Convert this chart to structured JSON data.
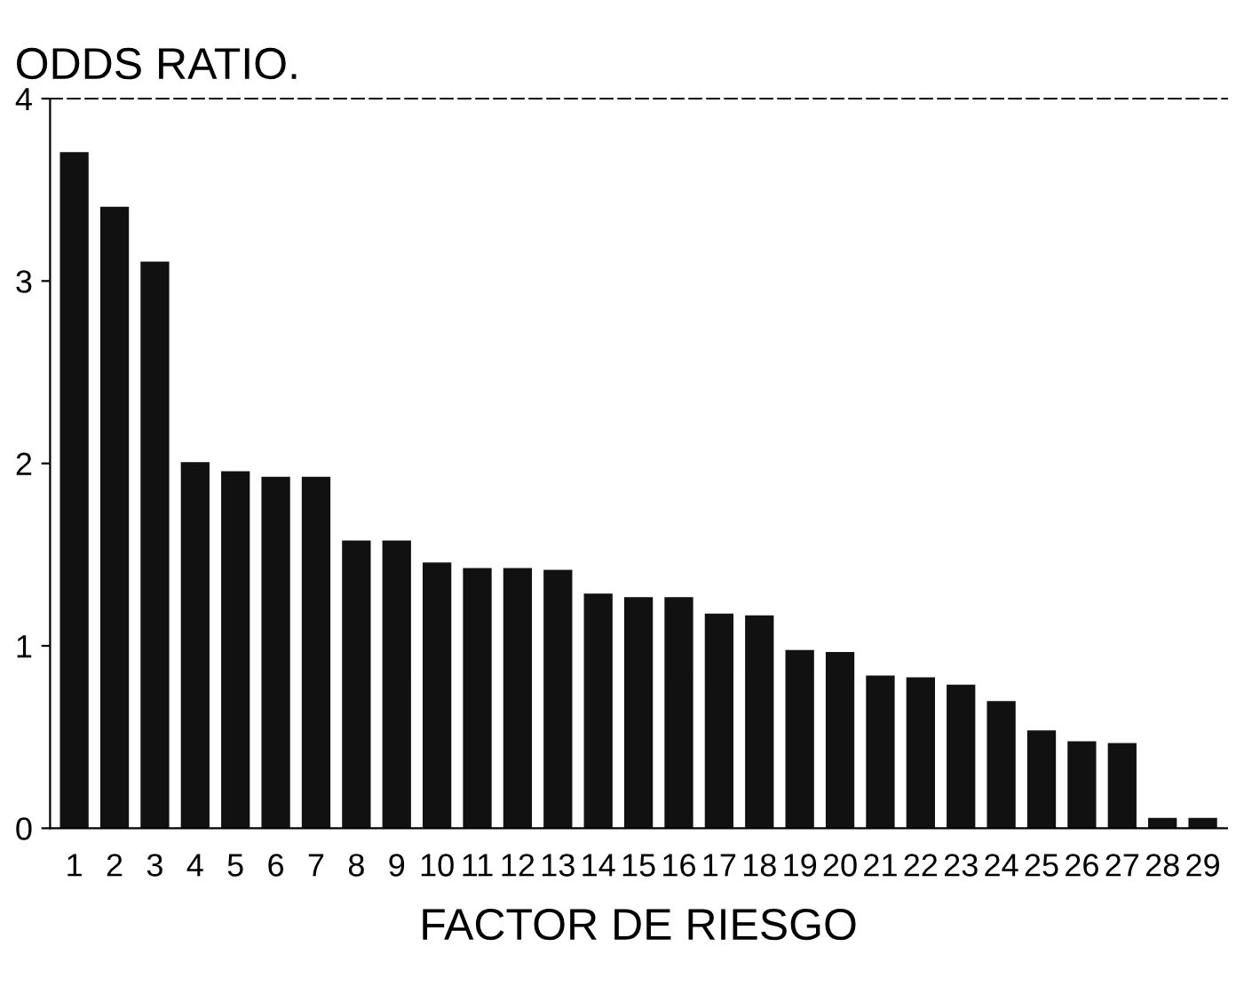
{
  "chart_data": {
    "type": "bar",
    "title": "ODDS RATIO.",
    "xlabel": "FACTOR DE RIESGO",
    "categories": [
      "1",
      "2",
      "3",
      "4",
      "5",
      "6",
      "7",
      "8",
      "9",
      "10",
      "11",
      "12",
      "13",
      "14",
      "15",
      "16",
      "17",
      "18",
      "19",
      "20",
      "21",
      "22",
      "23",
      "24",
      "25",
      "26",
      "27",
      "28",
      "29"
    ],
    "values": [
      3.7,
      3.4,
      3.1,
      2.0,
      1.95,
      1.92,
      1.92,
      1.57,
      1.57,
      1.45,
      1.42,
      1.42,
      1.41,
      1.28,
      1.26,
      1.26,
      1.17,
      1.16,
      0.97,
      0.96,
      0.83,
      0.82,
      0.78,
      0.69,
      0.53,
      0.47,
      0.46,
      0.05,
      0.05
    ],
    "color": "#111111",
    "ylim": [
      0,
      4
    ],
    "yticks": [
      0,
      1,
      2,
      3,
      4
    ],
    "grid": false,
    "legend": false
  }
}
